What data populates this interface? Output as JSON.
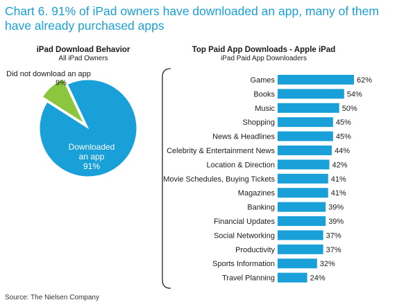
{
  "title": "Chart 6. 91% of iPad owners have downloaded an app, many of them have already purchased apps",
  "source": "Source: The Nielsen Company",
  "colors": {
    "accent": "#1aa0d8",
    "pie_main": "#1aa0d8",
    "pie_slice": "#8cc63f",
    "bar": "#1aa0d8"
  },
  "chart_data": [
    {
      "type": "pie",
      "title": "iPad Download Behavior",
      "subtitle": "All iPad Owners",
      "slices": [
        {
          "label": "Downloaded an app",
          "value": 91,
          "display": "91%"
        },
        {
          "label": "Did not download an app",
          "value": 9,
          "display": "9%"
        }
      ]
    },
    {
      "type": "bar",
      "orientation": "horizontal",
      "title": "Top Paid App Downloads - Apple iPad",
      "subtitle": "iPad Paid App Downloaders",
      "categories": [
        "Games",
        "Books",
        "Music",
        "Shopping",
        "News & Headlines",
        "Celebrity & Entertainment News",
        "Location & Direction",
        "Movie Schedules, Buying Tickets",
        "Magazines",
        "Banking",
        "Financial Updates",
        "Social Networking",
        "Productivity",
        "Sports Information",
        "Travel Planning"
      ],
      "values": [
        62,
        54,
        50,
        45,
        45,
        44,
        42,
        41,
        41,
        39,
        39,
        37,
        37,
        32,
        24
      ],
      "value_labels": [
        "62%",
        "54%",
        "50%",
        "45%",
        "45%",
        "44%",
        "42%",
        "41%",
        "41%",
        "39%",
        "39%",
        "37%",
        "37%",
        "32%",
        "24%"
      ]
    }
  ]
}
